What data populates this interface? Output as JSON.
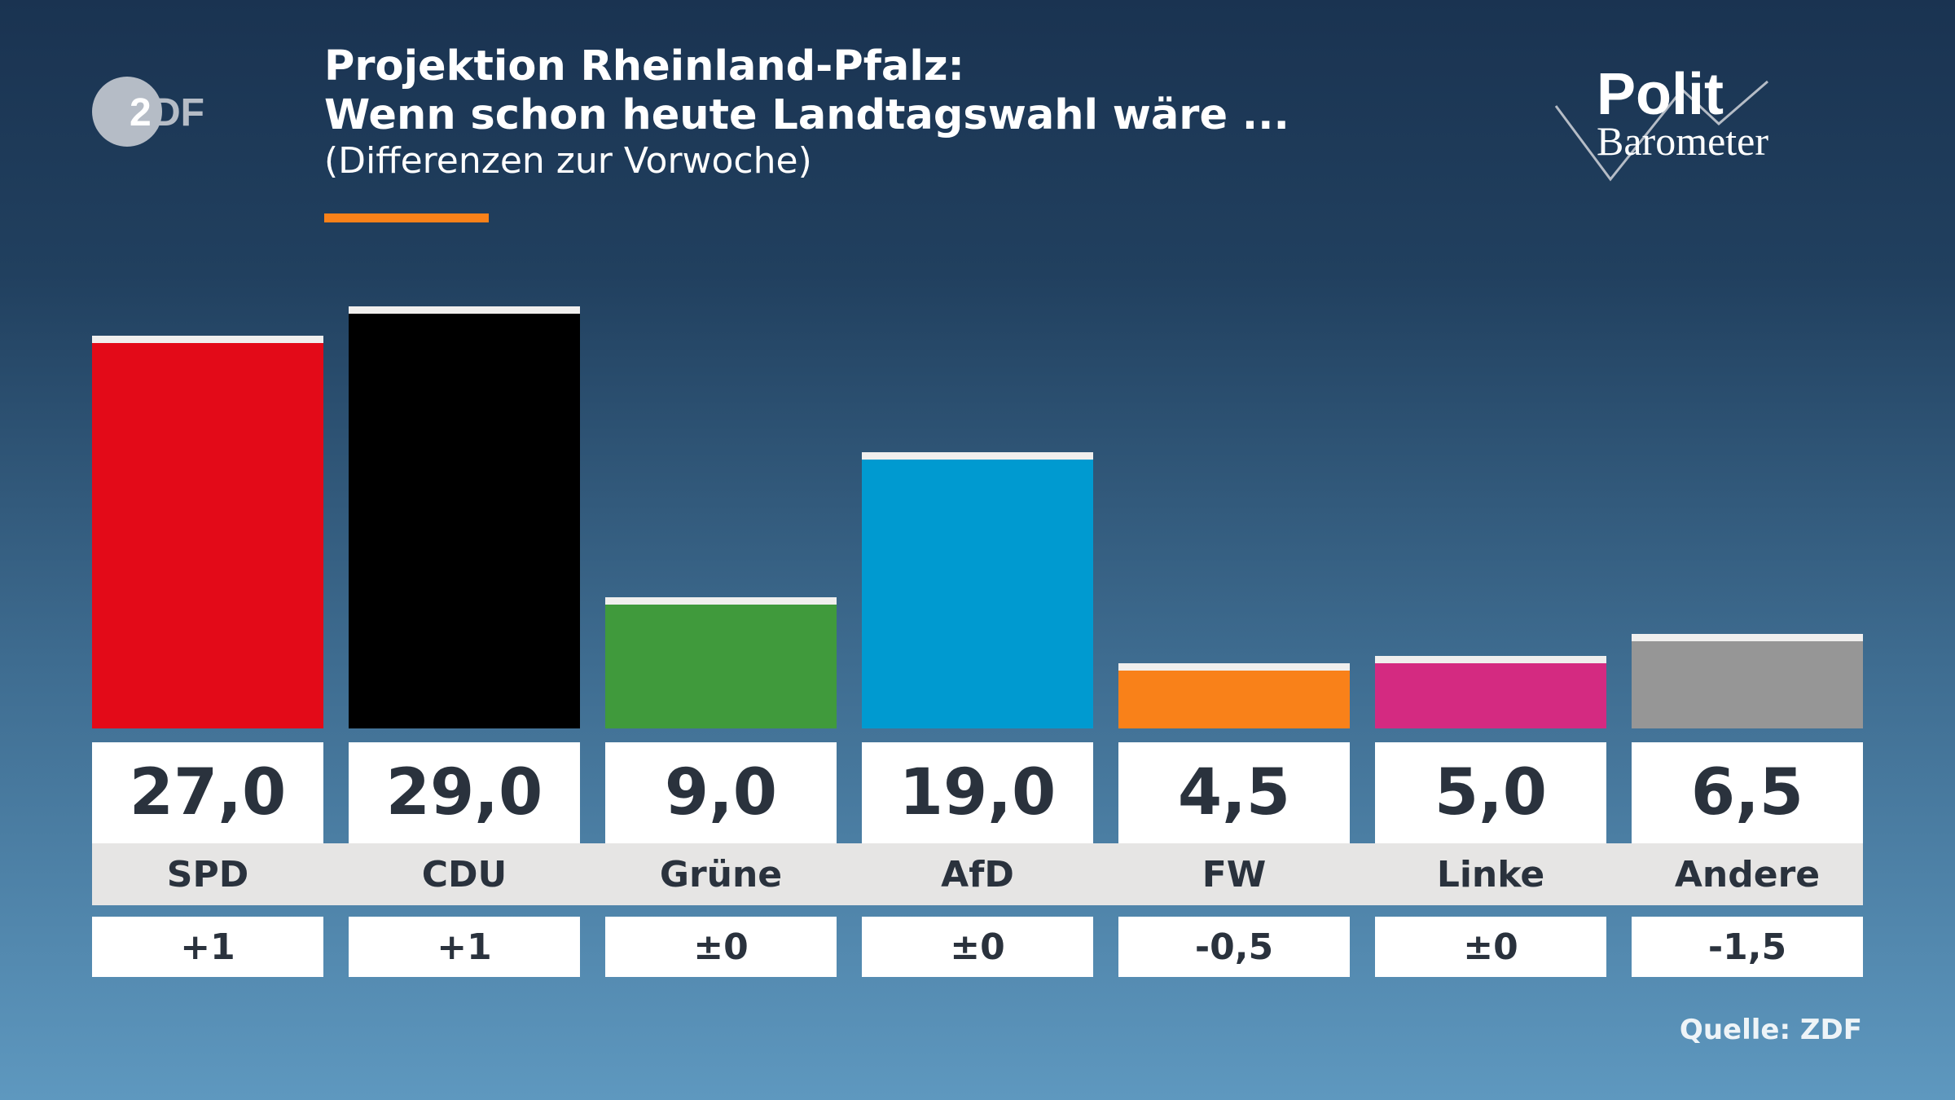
{
  "header": {
    "title_line1": "Projektion Rheinland-Pfalz:",
    "title_line2": "Wenn schon heute Landtagswahl wäre ...",
    "subtitle": "(Differenzen zur Vorwoche)"
  },
  "logos": {
    "left": "ZDF",
    "right_line1": "Polit",
    "right_line2": "Barometer"
  },
  "source": "Quelle: ZDF",
  "colors": {
    "accent": "#f98119"
  },
  "chart_data": {
    "type": "bar",
    "title": "Projektion Rheinland-Pfalz: Wenn schon heute Landtagswahl wäre ...",
    "subtitle": "(Differenzen zur Vorwoche)",
    "categories": [
      "SPD",
      "CDU",
      "Grüne",
      "AfD",
      "FW",
      "Linke",
      "Andere"
    ],
    "values": [
      27.0,
      29.0,
      9.0,
      19.0,
      4.5,
      5.0,
      6.5
    ],
    "value_labels": [
      "27,0",
      "29,0",
      "9,0",
      "19,0",
      "4,5",
      "5,0",
      "6,5"
    ],
    "differences": [
      "+1",
      "+1",
      "±0",
      "±0",
      "-0,5",
      "±0",
      "-1,5"
    ],
    "colors": [
      "#e30a18",
      "#000000",
      "#409a3c",
      "#009ad0",
      "#f98119",
      "#d42a81",
      "#969696"
    ],
    "ylim": [
      0,
      29
    ],
    "grid": false,
    "legend": "none"
  }
}
